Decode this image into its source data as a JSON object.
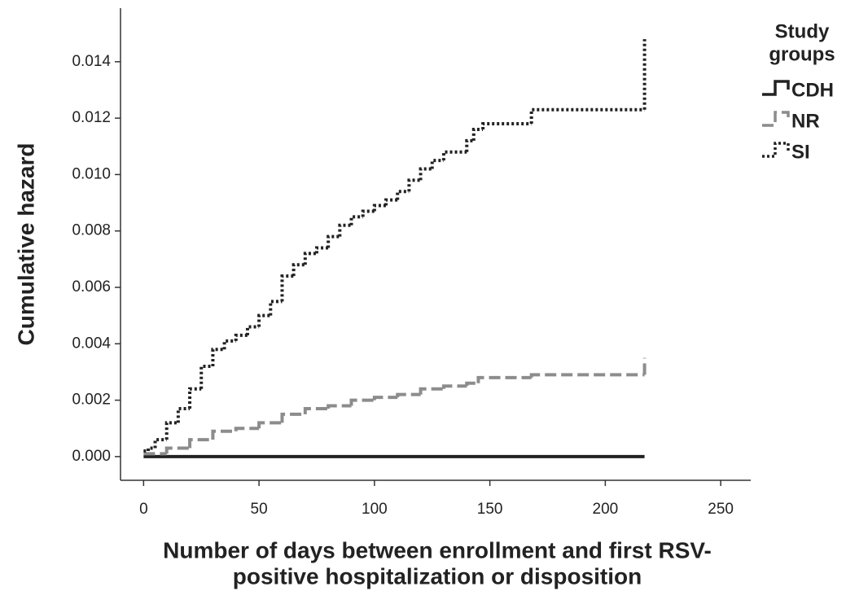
{
  "chart_data": {
    "type": "step",
    "ylabel": "Cumulative hazard",
    "xlabel": [
      "Number of days between enrollment and first RSV-",
      "positive hospitalization or disposition"
    ],
    "legend_title": [
      "Study",
      "groups"
    ],
    "legend_position": "right",
    "xlim": [
      -10,
      263
    ],
    "xticks": [
      0,
      50,
      100,
      150,
      200,
      250
    ],
    "ylim": [
      -0.00084,
      0.0159
    ],
    "yticks": [
      {
        "value": 0,
        "label": "0.000"
      },
      {
        "value": 0.002,
        "label": "0.002"
      },
      {
        "value": 0.004,
        "label": "0.004"
      },
      {
        "value": 0.006,
        "label": "0.006"
      },
      {
        "value": 0.008,
        "label": "0.008"
      },
      {
        "value": 0.01,
        "label": "0.010"
      },
      {
        "value": 0.012,
        "label": "0.012"
      },
      {
        "value": 0.014,
        "label": "0.014"
      }
    ],
    "series": [
      {
        "name": "CDH",
        "color": "#222222",
        "style": "solid",
        "x": [
          0,
          217
        ],
        "values": [
          0,
          0
        ]
      },
      {
        "name": "NR",
        "color": "#8c8c8c",
        "style": "dashed",
        "x": [
          0,
          10,
          20,
          30,
          40,
          50,
          60,
          70,
          80,
          90,
          100,
          110,
          120,
          130,
          140,
          145,
          168,
          217
        ],
        "values": [
          0.0001,
          0.0003,
          0.0006,
          0.0009,
          0.001,
          0.0012,
          0.0015,
          0.0017,
          0.0018,
          0.002,
          0.0021,
          0.0022,
          0.0024,
          0.0025,
          0.0026,
          0.0028,
          0.0029,
          0.0035
        ]
      },
      {
        "name": "SI",
        "color": "#222222",
        "style": "dotted",
        "x": [
          0,
          2,
          5,
          10,
          15,
          20,
          25,
          30,
          35,
          40,
          45,
          50,
          55,
          60,
          65,
          70,
          75,
          80,
          85,
          90,
          95,
          100,
          105,
          110,
          115,
          120,
          125,
          130,
          140,
          143,
          147,
          168,
          217
        ],
        "values": [
          0.0002,
          0.0003,
          0.0006,
          0.0012,
          0.0017,
          0.0024,
          0.0032,
          0.0038,
          0.0041,
          0.0043,
          0.0046,
          0.005,
          0.0055,
          0.0064,
          0.0068,
          0.0072,
          0.0074,
          0.0078,
          0.0082,
          0.0085,
          0.0087,
          0.0089,
          0.0091,
          0.0094,
          0.0098,
          0.0102,
          0.0105,
          0.0108,
          0.0112,
          0.0116,
          0.0118,
          0.0123,
          0.0148
        ]
      }
    ]
  }
}
